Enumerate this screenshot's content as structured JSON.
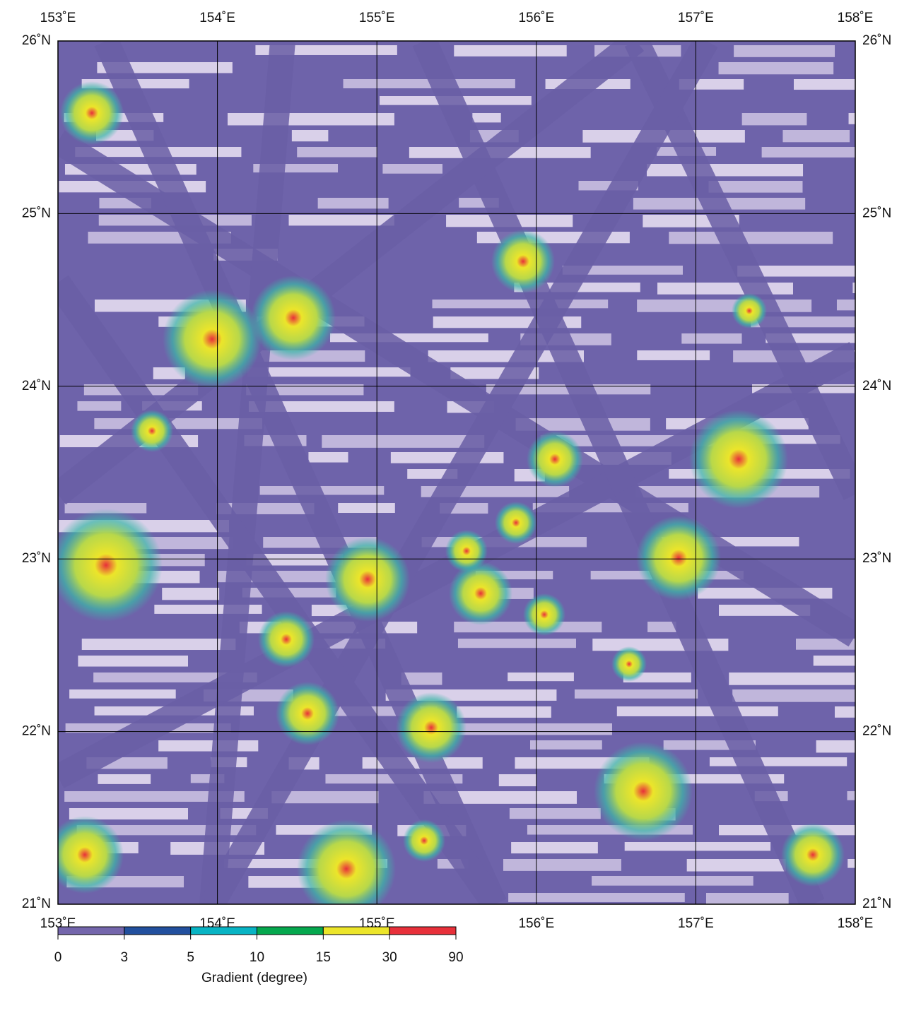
{
  "map": {
    "xlim": [
      153,
      158
    ],
    "ylim": [
      21,
      26
    ],
    "xticks": [
      {
        "value": 153,
        "label": "153˚E"
      },
      {
        "value": 154,
        "label": "154˚E"
      },
      {
        "value": 155,
        "label": "155˚E"
      },
      {
        "value": 156,
        "label": "156˚E"
      },
      {
        "value": 157,
        "label": "157˚E"
      },
      {
        "value": 158,
        "label": "158˚E"
      }
    ],
    "yticks": [
      {
        "value": 21,
        "label": "21˚N"
      },
      {
        "value": 22,
        "label": "22˚N"
      },
      {
        "value": 23,
        "label": "23˚N"
      },
      {
        "value": 24,
        "label": "24˚N"
      },
      {
        "value": 25,
        "label": "25˚N"
      },
      {
        "value": 26,
        "label": "26˚N"
      }
    ]
  },
  "colorbar": {
    "title": "Gradient (degree)",
    "bounds": [
      0,
      3,
      5,
      10,
      15,
      30,
      90
    ],
    "colors": [
      "#7466ac",
      "#22509e",
      "#08b4c4",
      "#05a84e",
      "#ece52a",
      "#e8303a"
    ]
  }
}
